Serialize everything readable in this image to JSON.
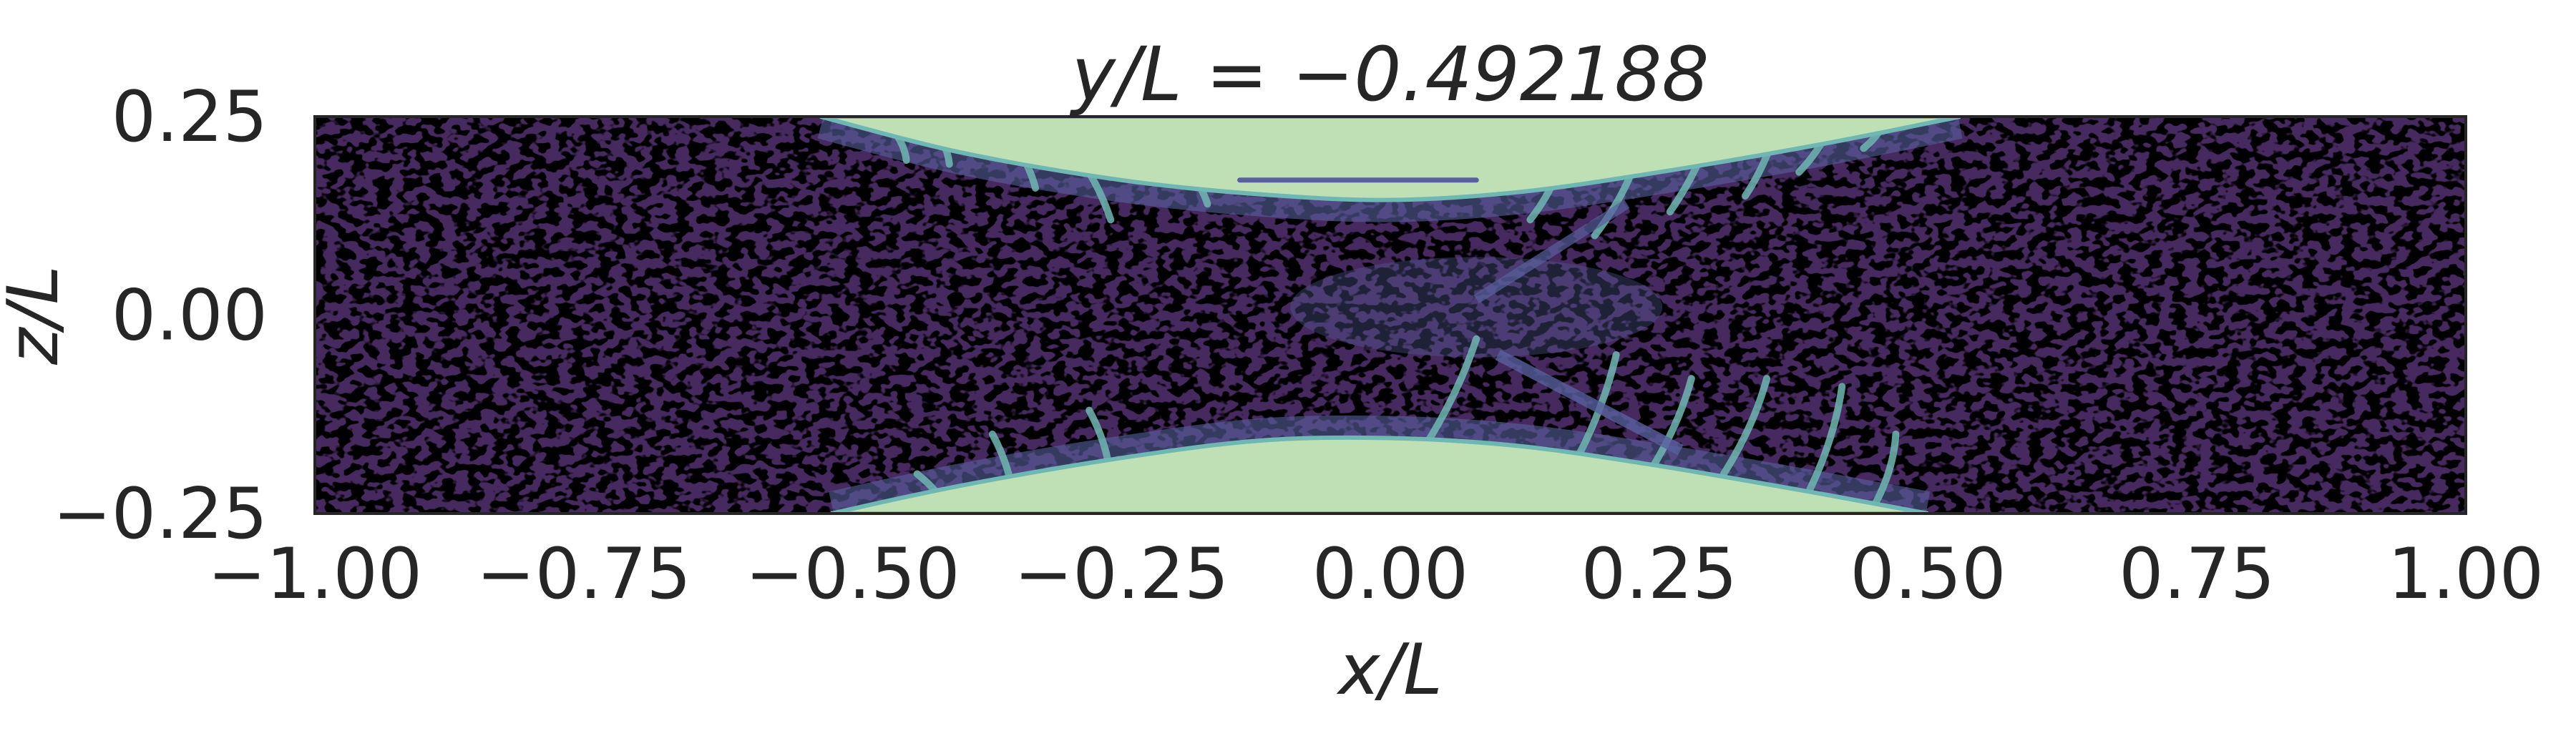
{
  "chart_data": {
    "type": "heatmap",
    "title": "y/L = −0.492188",
    "xlabel": "x/L",
    "ylabel": "z/L",
    "xlim": [
      -1.0,
      1.0
    ],
    "ylim": [
      -0.25,
      0.25
    ],
    "xticks": [
      -1.0,
      -0.75,
      -0.5,
      -0.25,
      0.0,
      0.25,
      0.5,
      0.75,
      1.0
    ],
    "xtick_labels": [
      "−1.00",
      "−0.75",
      "−0.50",
      "−0.25",
      "0.00",
      "0.25",
      "0.50",
      "0.75",
      "1.00"
    ],
    "yticks": [
      -0.25,
      0.0,
      0.25
    ],
    "ytick_labels": [
      "−0.25",
      "0.00",
      "0.25"
    ],
    "grid": false,
    "colormap": "dark purple → blue → teal → pale green",
    "colors": {
      "background": "#46295e",
      "speckle": "#000000",
      "mid": "#58609e",
      "teal": "#6fb7b2",
      "region": "#bfe0b4",
      "frame": "#262626"
    },
    "upper_region": {
      "x": [
        -0.53,
        -0.4,
        -0.25,
        -0.12,
        0.0,
        0.12,
        0.25,
        0.4,
        0.53
      ],
      "z_lower": [
        0.25,
        0.205,
        0.17,
        0.152,
        0.145,
        0.155,
        0.18,
        0.215,
        0.25
      ],
      "z_upper": 0.25
    },
    "lower_region": {
      "x": [
        -0.52,
        -0.4,
        -0.25,
        -0.12,
        0.0,
        0.12,
        0.25,
        0.4,
        0.5
      ],
      "z_upper": [
        -0.25,
        -0.215,
        -0.18,
        -0.158,
        -0.155,
        -0.165,
        -0.19,
        -0.225,
        -0.25
      ],
      "z_lower": -0.25
    },
    "inner_streak": {
      "x": [
        -0.14,
        0.08
      ],
      "z": 0.17
    }
  }
}
